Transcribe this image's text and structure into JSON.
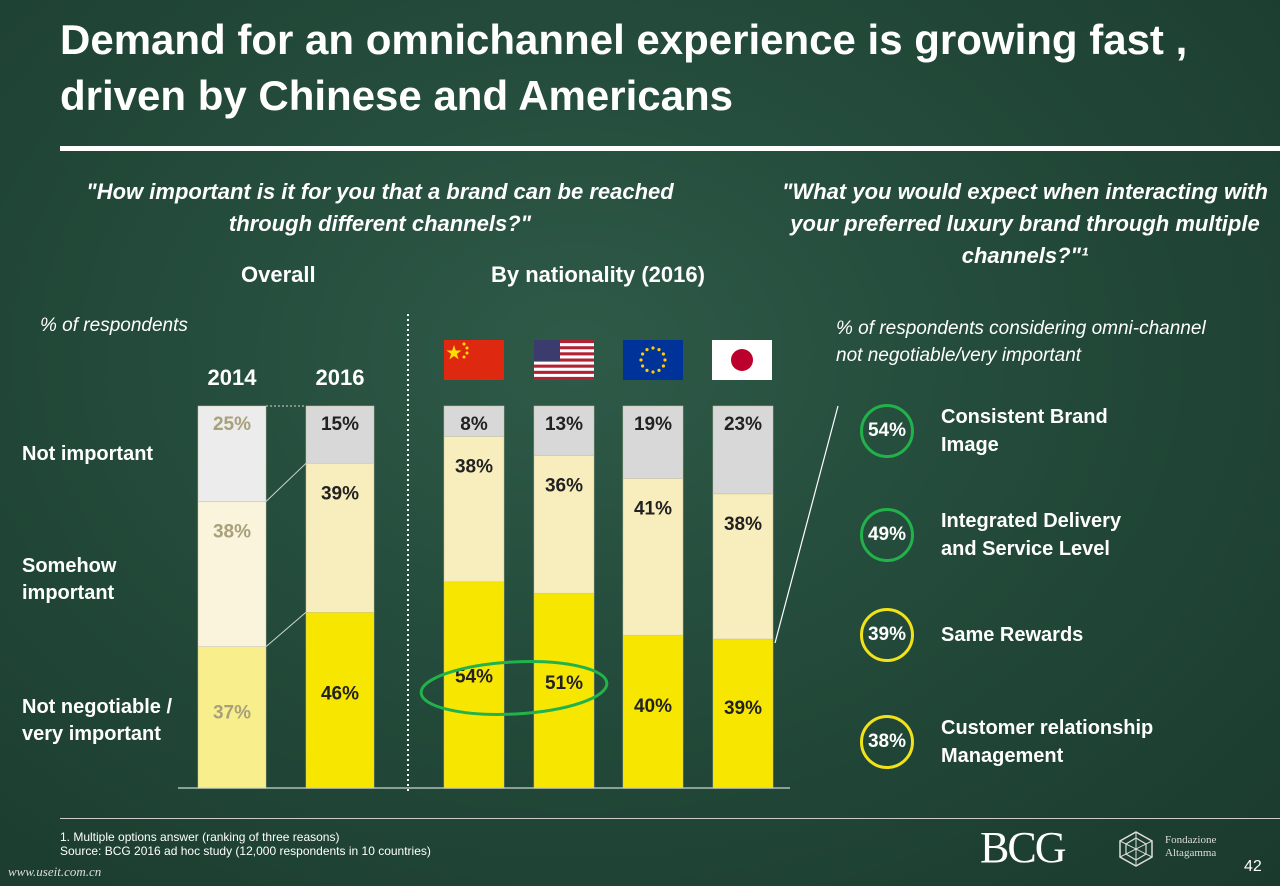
{
  "title": "Demand for an omnichannel experience is growing fast , driven by Chinese and Americans",
  "question_left": "\"How important is it for you that a brand can be reached through different channels?\"",
  "question_right": "\"What you would expect when interacting with your preferred luxury brand through multiple channels?\"¹",
  "header_overall": "Overall",
  "header_nationality": "By nationality (2016)",
  "left_note": "% of respondents",
  "right_note": "% of respondents considering omni-channel not negotiable/very important",
  "row_labels": {
    "not_important": "Not important",
    "somehow_important": "Somehow important",
    "very_important": "Not negotiable / very important"
  },
  "flags": [
    {
      "name": "china-flag-icon",
      "country": "China"
    },
    {
      "name": "usa-flag-icon",
      "country": "USA"
    },
    {
      "name": "eu-flag-icon",
      "country": "EU"
    },
    {
      "name": "japan-flag-icon",
      "country": "Japan"
    }
  ],
  "colors": {
    "very_important": "#f7e600",
    "very_important_faded": "#f8ef8c",
    "somehow": "#f8edbc",
    "somehow_faded": "#fbf4dd",
    "not_important": "#d8d8d8",
    "not_important_faded": "#ececec",
    "circle_green": "#21b24b",
    "circle_yellow": "#f2e21a"
  },
  "chart_data": [
    {
      "type": "bar",
      "stacked": true,
      "categories": [
        "2014",
        "2016"
      ],
      "series": [
        {
          "name": "Not negotiable / very important",
          "values": [
            37,
            46
          ]
        },
        {
          "name": "Somehow important",
          "values": [
            38,
            39
          ]
        },
        {
          "name": "Not important",
          "values": [
            25,
            15
          ]
        }
      ],
      "value_labels": [
        [
          "37%",
          "38%",
          "25%"
        ],
        [
          "46%",
          "39%",
          "15%"
        ]
      ]
    },
    {
      "type": "bar",
      "stacked": true,
      "categories": [
        "China",
        "USA",
        "EU",
        "Japan"
      ],
      "series": [
        {
          "name": "Not negotiable / very important",
          "values": [
            54,
            51,
            40,
            39
          ]
        },
        {
          "name": "Somehow important",
          "values": [
            38,
            36,
            41,
            38
          ]
        },
        {
          "name": "Not important",
          "values": [
            8,
            13,
            19,
            23
          ]
        }
      ],
      "value_labels": [
        [
          "54%",
          "38%",
          "8%"
        ],
        [
          "51%",
          "36%",
          "13%"
        ],
        [
          "40%",
          "41%",
          "19%"
        ],
        [
          "39%",
          "38%",
          "23%"
        ]
      ]
    }
  ],
  "expectations": [
    {
      "value": "54%",
      "label": "Consistent Brand\n Image",
      "color": "green"
    },
    {
      "value": "49%",
      "label": "Integrated Delivery\nand Service Level",
      "color": "green"
    },
    {
      "value": "39%",
      "label": "Same Rewards",
      "color": "yellow"
    },
    {
      "value": "38%",
      "label": "Customer relationship\nManagement",
      "color": "yellow"
    }
  ],
  "footnote": "1. Multiple options answer (ranking of three reasons)",
  "source": "Source: BCG 2016 ad hoc study (12,000 respondents in 10 countries)",
  "logo_bcg": "BCG",
  "logo_fondazione": "Fondazione\nAltagamma",
  "page_number": "42",
  "watermark": "www.useit.com.cn"
}
